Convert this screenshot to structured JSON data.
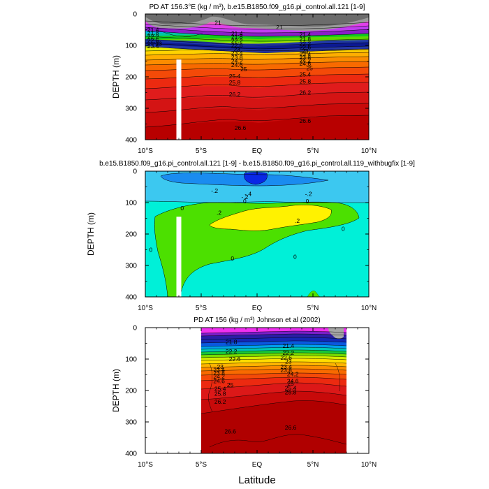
{
  "figure": {
    "xlabel": "Latitude",
    "x_ticks": [
      "10°S",
      "5°S",
      "EQ",
      "5°N",
      "10°N"
    ],
    "x_tick_values": [
      -10,
      -5,
      0,
      5,
      10
    ]
  },
  "chart_data": [
    {
      "type": "heatmap",
      "title": "PD AT 156.3°E (kg / m³), b.e15.B1850.f09_g16.pi_control.all.121 [1-9]",
      "ylabel": "DEPTH (m)",
      "xlim": [
        -10,
        10
      ],
      "ylim": [
        400,
        0
      ],
      "y_ticks": [
        "0",
        "100",
        "200",
        "300",
        "400"
      ],
      "y_tick_values": [
        0,
        100,
        200,
        300,
        400
      ],
      "land_mask": {
        "lat": -7,
        "depth_from": 145,
        "depth_to": 400
      },
      "contour_labels": [
        {
          "value": "21",
          "lat": -3.5,
          "depth": 28
        },
        {
          "value": "21",
          "lat": 2,
          "depth": 42
        },
        {
          "value": "21.4",
          "lat": -9.3,
          "depth": 50
        },
        {
          "value": "21.8",
          "lat": -9.3,
          "depth": 60
        },
        {
          "value": "22.2",
          "lat": -9.3,
          "depth": 72
        },
        {
          "value": "22.6",
          "lat": -9.3,
          "depth": 84
        },
        {
          "value": "23",
          "lat": -8.8,
          "depth": 94
        },
        {
          "value": "23.4",
          "lat": -9.3,
          "depth": 102
        },
        {
          "value": "21.4",
          "lat": -1.8,
          "depth": 62
        },
        {
          "value": "21.8",
          "lat": -1.8,
          "depth": 72
        },
        {
          "value": "22.2",
          "lat": -1.8,
          "depth": 86
        },
        {
          "value": "22.6",
          "lat": -1.8,
          "depth": 100
        },
        {
          "value": "23",
          "lat": -1.8,
          "depth": 112
        },
        {
          "value": "23.4",
          "lat": -1.8,
          "depth": 124
        },
        {
          "value": "23.8",
          "lat": -1.8,
          "depth": 138
        },
        {
          "value": "24.2",
          "lat": -1.8,
          "depth": 150
        },
        {
          "value": "24.6",
          "lat": -1.8,
          "depth": 162
        },
        {
          "value": "25",
          "lat": -1.2,
          "depth": 175
        },
        {
          "value": "25.4",
          "lat": -2.0,
          "depth": 198
        },
        {
          "value": "25.8",
          "lat": -2.0,
          "depth": 218
        },
        {
          "value": "26.2",
          "lat": -2.0,
          "depth": 255
        },
        {
          "value": "21.4",
          "lat": 4.3,
          "depth": 66
        },
        {
          "value": "21.8",
          "lat": 4.3,
          "depth": 80
        },
        {
          "value": "22.2",
          "lat": 4.3,
          "depth": 94
        },
        {
          "value": "22.6",
          "lat": 4.3,
          "depth": 106
        },
        {
          "value": "23",
          "lat": 4.3,
          "depth": 118
        },
        {
          "value": "23.4",
          "lat": 4.3,
          "depth": 128
        },
        {
          "value": "23.8",
          "lat": 4.3,
          "depth": 138
        },
        {
          "value": "24.2",
          "lat": 4.3,
          "depth": 148
        },
        {
          "value": "24.6",
          "lat": 4.3,
          "depth": 158
        },
        {
          "value": "25",
          "lat": 4.7,
          "depth": 172
        },
        {
          "value": "25.4",
          "lat": 4.3,
          "depth": 192
        },
        {
          "value": "25.8",
          "lat": 4.3,
          "depth": 214
        },
        {
          "value": "26.2",
          "lat": 4.3,
          "depth": 250
        },
        {
          "value": "26.6",
          "lat": -1.5,
          "depth": 362
        },
        {
          "value": "26.6",
          "lat": 4.3,
          "depth": 340
        }
      ]
    },
    {
      "type": "heatmap",
      "title": "b.e15.B1850.f09_g16.pi_control.all.121 [1-9] - b.e15.B1850.f09_g16.pi_control.all.119_withbugfix [1-9]",
      "ylabel": "DEPTH (m)",
      "xlim": [
        -10,
        10
      ],
      "ylim": [
        400,
        0
      ],
      "y_ticks": [
        "0",
        "100",
        "200",
        "300",
        "400"
      ],
      "y_tick_values": [
        0,
        100,
        200,
        300,
        400
      ],
      "land_mask": {
        "lat": -7,
        "depth_from": 145,
        "depth_to": 400
      },
      "contour_labels": [
        {
          "value": "-.2",
          "lat": -3.8,
          "depth": 62
        },
        {
          "value": "-.4",
          "lat": -0.8,
          "depth": 72
        },
        {
          "value": "-.2",
          "lat": -1.1,
          "depth": 82
        },
        {
          "value": "-.2",
          "lat": 4.6,
          "depth": 72
        },
        {
          "value": "0",
          "lat": -1.1,
          "depth": 96
        },
        {
          "value": "0",
          "lat": -6.7,
          "depth": 118
        },
        {
          "value": "0",
          "lat": 4.5,
          "depth": 96
        },
        {
          "value": ".2",
          "lat": -3.4,
          "depth": 132
        },
        {
          "value": ".2",
          "lat": 3.6,
          "depth": 158
        },
        {
          "value": "0",
          "lat": 7.7,
          "depth": 183
        },
        {
          "value": "0",
          "lat": -9.5,
          "depth": 250
        },
        {
          "value": "0",
          "lat": -2.2,
          "depth": 278
        },
        {
          "value": "0",
          "lat": 3.4,
          "depth": 272
        }
      ]
    },
    {
      "type": "heatmap",
      "title": "PD AT 156 (kg / m³) Johnson et al (2002)",
      "ylabel": "DEPTH (m)",
      "xlim": [
        -10,
        10
      ],
      "ylim": [
        400,
        0
      ],
      "y_ticks": [
        "0",
        "100",
        "200",
        "300",
        "400"
      ],
      "y_tick_values": [
        0,
        100,
        200,
        300,
        400
      ],
      "data_extent_lat": [
        -5,
        8
      ],
      "contour_labels": [
        {
          "value": "21.8",
          "lat": -2.3,
          "depth": 46
        },
        {
          "value": "21.4",
          "lat": 2.8,
          "depth": 58
        },
        {
          "value": "22.2",
          "lat": -2.3,
          "depth": 75
        },
        {
          "value": "22.2",
          "lat": 2.8,
          "depth": 80
        },
        {
          "value": "22.6",
          "lat": -2.0,
          "depth": 100
        },
        {
          "value": "22.6",
          "lat": 2.6,
          "depth": 96
        },
        {
          "value": "23",
          "lat": -3.3,
          "depth": 124
        },
        {
          "value": "23",
          "lat": 2.8,
          "depth": 108
        },
        {
          "value": "23.4",
          "lat": -3.4,
          "depth": 134
        },
        {
          "value": "23.4",
          "lat": 2.6,
          "depth": 124
        },
        {
          "value": "23.8",
          "lat": -3.4,
          "depth": 144
        },
        {
          "value": "23.8",
          "lat": 2.6,
          "depth": 136
        },
        {
          "value": "24.2",
          "lat": -3.4,
          "depth": 156
        },
        {
          "value": "24.2",
          "lat": 3.2,
          "depth": 148
        },
        {
          "value": "24.6",
          "lat": -3.4,
          "depth": 170
        },
        {
          "value": "24.6",
          "lat": 3.2,
          "depth": 170
        },
        {
          "value": "25",
          "lat": -2.4,
          "depth": 182
        },
        {
          "value": "25",
          "lat": 3.0,
          "depth": 178
        },
        {
          "value": "25.4",
          "lat": -3.3,
          "depth": 194
        },
        {
          "value": "25.4",
          "lat": 3.0,
          "depth": 192
        },
        {
          "value": "25.8",
          "lat": -3.3,
          "depth": 210
        },
        {
          "value": "25.8",
          "lat": 3.0,
          "depth": 206
        },
        {
          "value": "26.2",
          "lat": -3.3,
          "depth": 235
        },
        {
          "value": "26.6",
          "lat": -2.4,
          "depth": 330
        },
        {
          "value": "26.6",
          "lat": 3.0,
          "depth": 318
        }
      ]
    }
  ]
}
